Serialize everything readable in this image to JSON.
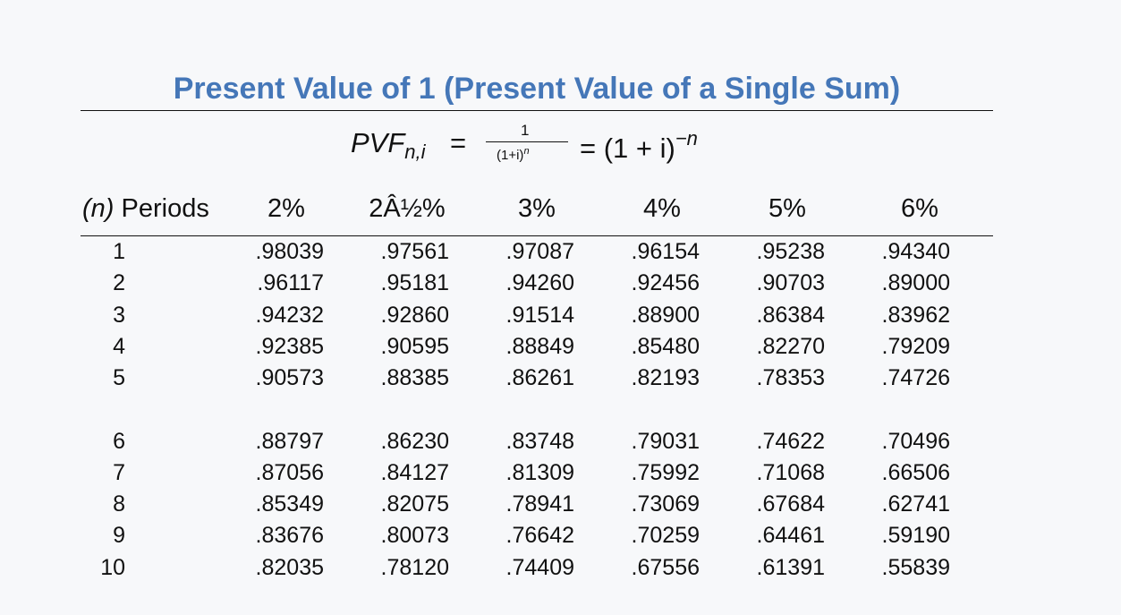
{
  "title": "Present Value of 1 (Present Value of a Single Sum)",
  "formula": {
    "lhs_base": "PVF",
    "lhs_sub": "n,i",
    "equals": "=",
    "numerator": "1",
    "denominator_base": "(1+i)",
    "denominator_exp": "n",
    "rhs_base": "= (1 + i)",
    "rhs_exp": "−n"
  },
  "table": {
    "period_header_var": "(n)",
    "period_header_text": " Periods",
    "columns": [
      "2%",
      "2Â½%",
      "3%",
      "4%",
      "5%",
      "6%"
    ],
    "rows": [
      {
        "n": "1",
        "values": [
          ".98039",
          ".97561",
          ".97087",
          ".96154",
          ".95238",
          ".94340"
        ]
      },
      {
        "n": "2",
        "values": [
          ".96117",
          ".95181",
          ".94260",
          ".92456",
          ".90703",
          ".89000"
        ]
      },
      {
        "n": "3",
        "values": [
          ".94232",
          ".92860",
          ".91514",
          ".88900",
          ".86384",
          ".83962"
        ]
      },
      {
        "n": "4",
        "values": [
          ".92385",
          ".90595",
          ".88849",
          ".85480",
          ".82270",
          ".79209"
        ]
      },
      {
        "n": "5",
        "values": [
          ".90573",
          ".88385",
          ".86261",
          ".82193",
          ".78353",
          ".74726"
        ]
      },
      {
        "n": "6",
        "values": [
          ".88797",
          ".86230",
          ".83748",
          ".79031",
          ".74622",
          ".70496"
        ]
      },
      {
        "n": "7",
        "values": [
          ".87056",
          ".84127",
          ".81309",
          ".75992",
          ".71068",
          ".66506"
        ]
      },
      {
        "n": "8",
        "values": [
          ".85349",
          ".82075",
          ".78941",
          ".73069",
          ".67684",
          ".62741"
        ]
      },
      {
        "n": "9",
        "values": [
          ".83676",
          ".80073",
          ".76642",
          ".70259",
          ".64461",
          ".59190"
        ]
      },
      {
        "n": "10",
        "values": [
          ".82035",
          ".78120",
          ".74409",
          ".67556",
          ".61391",
          ".55839"
        ]
      }
    ]
  }
}
